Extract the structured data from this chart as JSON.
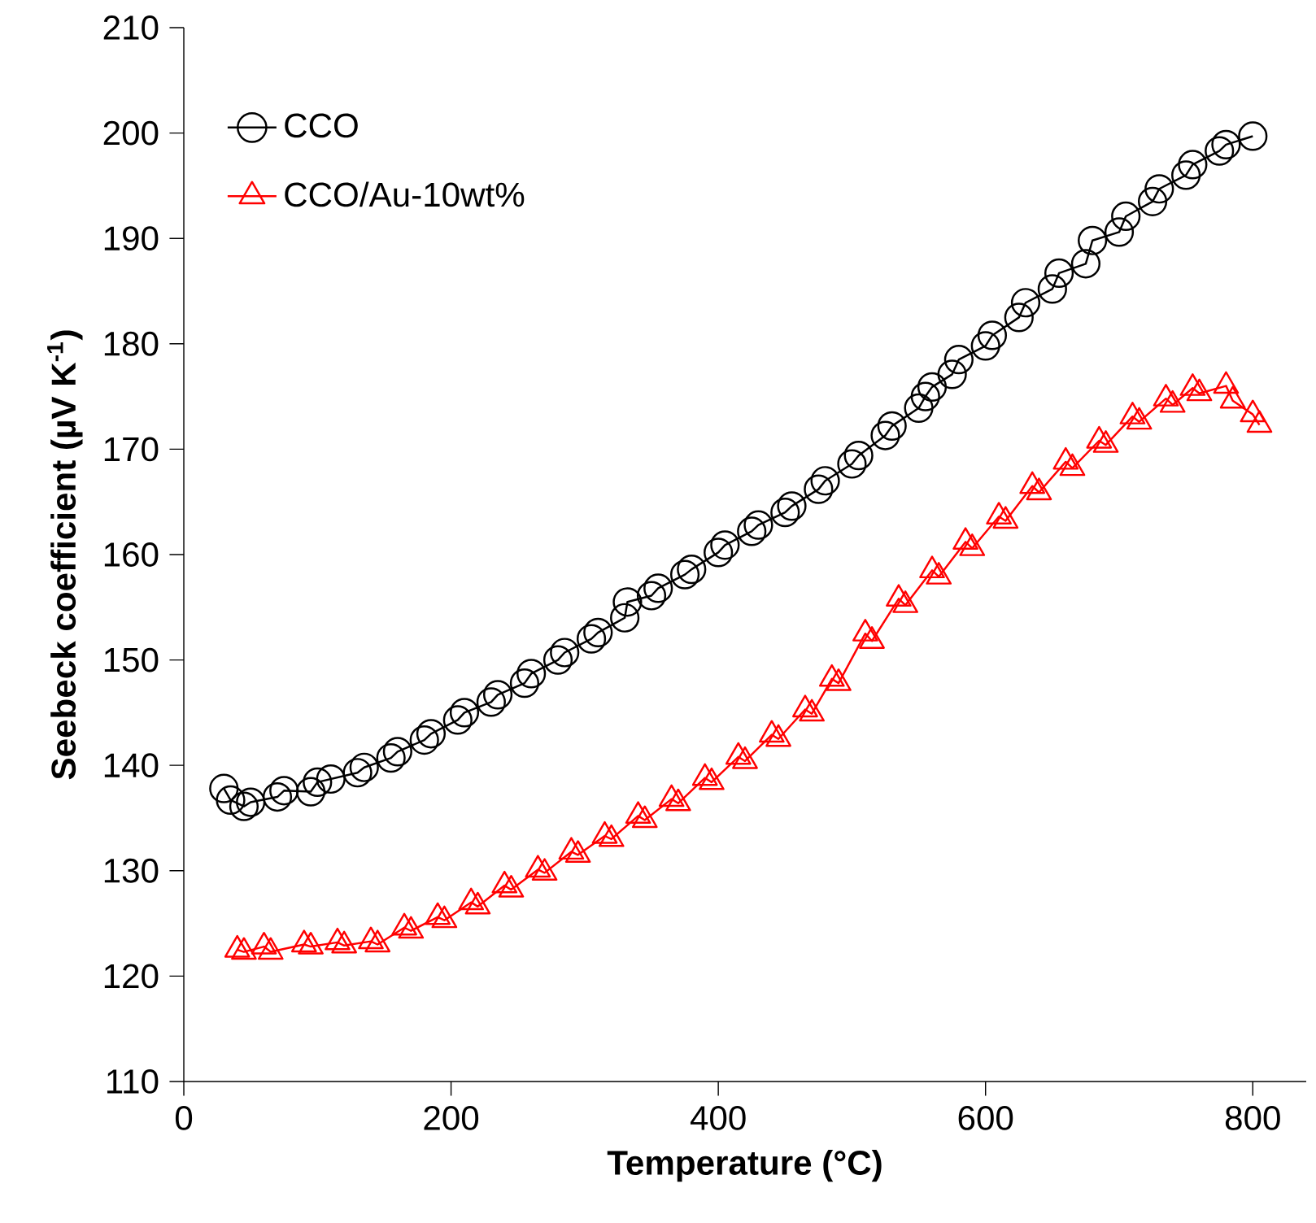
{
  "chart_data": {
    "type": "line",
    "xlabel": "Temperature (°C)",
    "ylabel": "Seebeck coefficient (µV K$^{-1}$)",
    "xlim": [
      0,
      840
    ],
    "ylim": [
      110,
      210
    ],
    "xticks": [
      0,
      200,
      400,
      600,
      800
    ],
    "yticks": [
      110,
      120,
      130,
      140,
      150,
      160,
      170,
      180,
      190,
      200,
      210
    ],
    "legend": "top left",
    "grid": false,
    "line_style": "solid",
    "series": [
      {
        "name": "CCO",
        "color": "#000000",
        "marker": "circle",
        "x": [
          30,
          35,
          45,
          50,
          70,
          75,
          95,
          100,
          110,
          130,
          135,
          155,
          160,
          180,
          185,
          205,
          210,
          230,
          235,
          255,
          260,
          280,
          285,
          305,
          310,
          330,
          332,
          350,
          355,
          375,
          380,
          400,
          405,
          425,
          430,
          450,
          455,
          475,
          480,
          500,
          505,
          525,
          530,
          550,
          555,
          560,
          575,
          580,
          600,
          605,
          625,
          630,
          650,
          655,
          675,
          680,
          700,
          705,
          725,
          730,
          750,
          755,
          775,
          780,
          800
        ],
        "values": [
          137.8,
          136.7,
          136.1,
          136.5,
          137,
          137.6,
          137.5,
          138.4,
          138.7,
          139.3,
          139.8,
          140.7,
          141.3,
          142.4,
          143,
          144.3,
          145,
          146,
          146.7,
          147.8,
          148.7,
          150,
          150.7,
          152,
          152.6,
          154,
          155.5,
          156.1,
          156.8,
          158.1,
          158.6,
          160.2,
          160.9,
          162.2,
          162.8,
          164,
          164.6,
          166.2,
          167,
          168.6,
          169.4,
          171.3,
          172.2,
          173.9,
          175,
          175.9,
          177.1,
          178.5,
          179.8,
          180.8,
          182.5,
          183.9,
          185.2,
          186.7,
          187.6,
          189.8,
          190.6,
          192.1,
          193.5,
          194.7,
          196,
          197,
          198.3,
          198.9,
          199.7
        ]
      },
      {
        "name": "CCO/Au-10wt%",
        "color": "#ff0000",
        "marker": "triangle",
        "x": [
          40,
          45,
          60,
          65,
          90,
          95,
          115,
          120,
          140,
          145,
          165,
          170,
          190,
          195,
          215,
          220,
          240,
          245,
          265,
          270,
          290,
          295,
          315,
          320,
          340,
          345,
          365,
          370,
          390,
          395,
          415,
          420,
          440,
          445,
          465,
          470,
          485,
          490,
          510,
          515,
          535,
          540,
          560,
          565,
          585,
          590,
          610,
          615,
          635,
          640,
          660,
          665,
          685,
          690,
          710,
          715,
          735,
          740,
          755,
          760,
          780,
          785,
          800,
          805
        ],
        "values": [
          122.5,
          122.3,
          122.8,
          122.3,
          123,
          122.8,
          123.2,
          122.9,
          123.3,
          123,
          124.6,
          124.3,
          125.6,
          125.3,
          127,
          126.6,
          128.6,
          128.2,
          130.1,
          129.8,
          131.8,
          131.5,
          133.3,
          133,
          135.2,
          134.8,
          136.8,
          136.4,
          138.8,
          138.4,
          140.8,
          140.4,
          142.9,
          142.5,
          145.3,
          144.9,
          148.2,
          147.8,
          152.5,
          151.8,
          155.8,
          155.2,
          158.5,
          157.9,
          161.2,
          160.6,
          163.6,
          163.2,
          166.5,
          165.9,
          168.8,
          168.2,
          170.8,
          170.4,
          173.1,
          172.6,
          174.8,
          174.2,
          175.8,
          175.3,
          176,
          174.6,
          173.3,
          172.3
        ]
      }
    ]
  }
}
